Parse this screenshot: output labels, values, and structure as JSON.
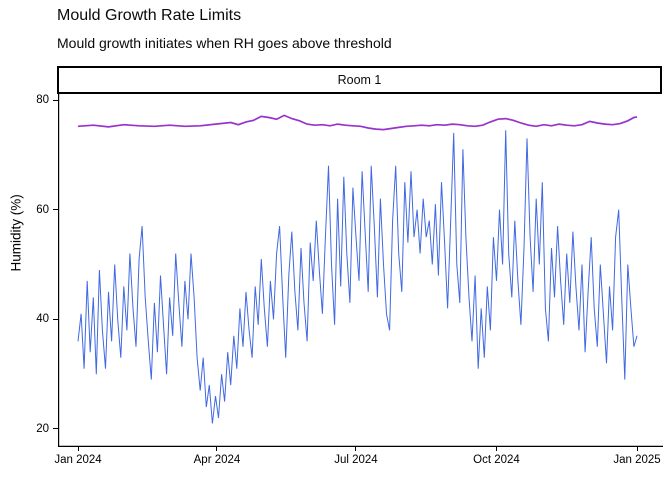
{
  "page": {
    "title": "Mould Growth Rate Limits",
    "subtitle": "Mould growth initiates when RH goes above threshold"
  },
  "facet": {
    "label": "Room 1"
  },
  "colors": {
    "humidity_line": "#4169E1",
    "threshold_line": "#9932CC",
    "axis": "#000000",
    "strip_border": "#000000",
    "background": "#FFFFFF",
    "text": "#0A0A0A"
  },
  "chart_data": {
    "type": "line",
    "title": "Mould Growth Rate Limits",
    "subtitle": "Mould growth initiates when RH goes above threshold",
    "facet": "Room 1",
    "xlabel": "",
    "ylabel": "Humidity (%)",
    "x_unit": "days since 2024-01-01",
    "x_tick_labels": [
      "Jan 2024",
      "Apr 2024",
      "Jul 2024",
      "Oct 2024",
      "Jan 2025"
    ],
    "x_tick_days": [
      0,
      91,
      182,
      274,
      366
    ],
    "y_tick_labels": [
      "80",
      "60",
      "40",
      "20"
    ],
    "y_tick_values": [
      80,
      60,
      40,
      20
    ],
    "ylim": [
      17,
      81
    ],
    "xlim_days": [
      -13,
      380
    ],
    "grid": false,
    "legend": "none",
    "series": [
      {
        "name": "humidity",
        "color": "#4169E1",
        "stroke_width": 1,
        "x": [
          0,
          2,
          4,
          6,
          8,
          10,
          12,
          14,
          16,
          18,
          20,
          22,
          24,
          26,
          28,
          30,
          32,
          34,
          36,
          38,
          40,
          42,
          44,
          46,
          48,
          50,
          52,
          54,
          56,
          58,
          60,
          62,
          64,
          66,
          68,
          70,
          72,
          74,
          76,
          78,
          80,
          82,
          84,
          86,
          88,
          90,
          92,
          94,
          96,
          98,
          100,
          102,
          104,
          106,
          108,
          110,
          112,
          114,
          116,
          118,
          120,
          122,
          124,
          126,
          128,
          130,
          132,
          134,
          136,
          138,
          140,
          142,
          144,
          146,
          148,
          150,
          152,
          154,
          156,
          158,
          160,
          162,
          164,
          166,
          168,
          170,
          172,
          174,
          176,
          178,
          180,
          182,
          184,
          186,
          188,
          190,
          192,
          194,
          196,
          198,
          200,
          202,
          204,
          206,
          208,
          210,
          212,
          214,
          216,
          218,
          220,
          222,
          224,
          226,
          228,
          230,
          232,
          234,
          236,
          238,
          240,
          242,
          244,
          246,
          248,
          250,
          252,
          254,
          256,
          258,
          260,
          262,
          264,
          266,
          268,
          270,
          272,
          274,
          276,
          278,
          280,
          282,
          284,
          286,
          288,
          290,
          292,
          294,
          296,
          298,
          300,
          302,
          304,
          306,
          308,
          310,
          312,
          314,
          316,
          318,
          320,
          322,
          324,
          326,
          328,
          330,
          332,
          334,
          336,
          338,
          340,
          342,
          344,
          346,
          348,
          350,
          352,
          354,
          356,
          358,
          360,
          362,
          364,
          366
        ],
        "y": [
          36,
          41,
          31,
          47,
          34,
          44,
          30,
          49,
          38,
          31,
          45,
          36,
          50,
          40,
          33,
          46,
          38,
          52,
          42,
          35,
          51,
          57,
          44,
          36,
          29,
          43,
          34,
          48,
          39,
          30,
          44,
          37,
          52,
          43,
          35,
          47,
          40,
          52,
          44,
          33,
          27,
          33,
          24,
          28,
          21,
          26,
          22,
          30,
          25,
          34,
          28,
          37,
          31,
          42,
          35,
          45,
          38,
          33,
          46,
          39,
          51,
          42,
          35,
          47,
          40,
          52,
          57,
          44,
          33,
          48,
          56,
          45,
          38,
          53,
          43,
          36,
          54,
          47,
          58,
          49,
          41,
          55,
          68,
          50,
          39,
          62,
          46,
          66,
          52,
          43,
          64,
          55,
          47,
          67,
          56,
          45,
          68,
          57,
          44,
          62,
          50,
          41,
          38,
          58,
          68,
          52,
          45,
          65,
          54,
          67,
          55,
          60,
          52,
          62,
          55,
          58,
          50,
          61,
          48,
          65,
          54,
          42,
          58,
          74,
          50,
          43,
          71,
          55,
          44,
          36,
          48,
          31,
          42,
          33,
          46,
          38,
          55,
          47,
          60,
          50,
          74.5,
          52,
          44,
          58,
          47,
          39,
          53,
          73,
          55,
          45,
          62,
          50,
          65,
          42,
          36,
          53,
          44,
          57,
          47,
          39,
          52,
          43,
          56,
          46,
          38,
          50,
          34,
          45,
          55,
          42,
          35,
          50,
          41,
          32,
          46,
          38,
          55,
          60,
          44,
          29,
          50,
          42,
          35,
          37
        ]
      },
      {
        "name": "mould-growth-threshold",
        "color": "#9932CC",
        "stroke_width": 1.7,
        "x": [
          0,
          10,
          20,
          30,
          40,
          50,
          60,
          70,
          80,
          90,
          100,
          105,
          110,
          115,
          120,
          125,
          130,
          135,
          140,
          145,
          150,
          155,
          160,
          165,
          170,
          175,
          180,
          185,
          190,
          195,
          200,
          205,
          210,
          215,
          220,
          225,
          230,
          235,
          240,
          245,
          250,
          255,
          260,
          265,
          270,
          275,
          280,
          285,
          290,
          295,
          300,
          305,
          310,
          315,
          320,
          325,
          330,
          335,
          340,
          345,
          350,
          355,
          360,
          364,
          366
        ],
        "y": [
          75.2,
          75.4,
          75.1,
          75.5,
          75.3,
          75.2,
          75.4,
          75.2,
          75.3,
          75.6,
          75.9,
          75.5,
          76.0,
          76.3,
          77.0,
          76.8,
          76.5,
          77.2,
          76.6,
          76.2,
          75.6,
          75.4,
          75.5,
          75.3,
          75.6,
          75.4,
          75.3,
          75.2,
          74.9,
          74.7,
          74.6,
          74.8,
          75.0,
          75.2,
          75.3,
          75.4,
          75.3,
          75.5,
          75.4,
          75.6,
          75.5,
          75.3,
          75.2,
          75.4,
          76.0,
          76.5,
          76.6,
          76.3,
          75.8,
          75.4,
          75.2,
          75.5,
          75.3,
          75.6,
          75.4,
          75.3,
          75.5,
          76.1,
          75.8,
          75.6,
          75.5,
          75.7,
          76.2,
          76.8,
          76.9
        ]
      }
    ]
  }
}
